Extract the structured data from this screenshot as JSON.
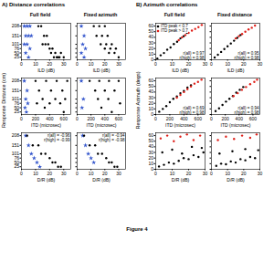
{
  "figure_title": "Figure 4",
  "sections": [
    {
      "title": "A) Distance correlations",
      "y_label": "Response Distance (cm)",
      "column_titles": [
        "Full field",
        "Fixed azimuth"
      ]
    },
    {
      "title": "B) Azimuth correlations",
      "y_label": "Response Azimuth (degs)",
      "column_titles": [
        "Full field",
        "Fixed distance"
      ]
    }
  ],
  "chart_data": [
    {
      "type": "scatter",
      "x_label": "ILD (dB)",
      "xlim": [
        0,
        35
      ],
      "xticks": [
        0,
        10,
        20,
        30
      ],
      "ylim": [
        10,
        225
      ],
      "yticks": [
        25,
        50,
        76,
        101,
        151,
        208
      ],
      "series": [
        {
          "color": "#3355cc",
          "marker": "star",
          "x": [
            2,
            4,
            6,
            3,
            5,
            7,
            2,
            4,
            6,
            3,
            5
          ],
          "values": [
            208,
            208,
            208,
            151,
            151,
            151,
            101,
            101,
            76,
            50,
            25
          ]
        },
        {
          "color": "#000000",
          "marker": "circle",
          "x": [
            12,
            14,
            16,
            18,
            15,
            17,
            19,
            20,
            22,
            21,
            24,
            23,
            26,
            25,
            28,
            27,
            30
          ],
          "values": [
            208,
            208,
            151,
            151,
            101,
            101,
            101,
            76,
            76,
            50,
            50,
            25,
            25,
            25,
            50,
            25,
            25
          ]
        }
      ]
    },
    {
      "type": "scatter",
      "x_label": "ILD (dB)",
      "xlim": [
        0,
        35
      ],
      "xticks": [
        0,
        10,
        20,
        30
      ],
      "ylim": [
        10,
        225
      ],
      "yticks": [
        25,
        50,
        76,
        101,
        151,
        208
      ],
      "tick_labels": "x",
      "series": [
        {
          "color": "#3355cc",
          "marker": "star",
          "x": [
            3,
            5,
            4,
            6,
            3,
            5
          ],
          "values": [
            208,
            151,
            101,
            76,
            50,
            25
          ]
        },
        {
          "color": "#000000",
          "marker": "circle",
          "x": [
            12,
            16,
            20,
            14,
            18,
            22,
            17,
            21,
            25,
            20,
            24,
            28,
            23,
            27,
            30
          ],
          "values": [
            208,
            208,
            208,
            151,
            151,
            151,
            101,
            101,
            101,
            76,
            76,
            76,
            50,
            50,
            25
          ]
        }
      ]
    },
    {
      "type": "scatter",
      "x_label": "ITD (microsec)",
      "xlim": [
        0,
        700
      ],
      "xticks": [
        0,
        200,
        400,
        600
      ],
      "ylim": [
        10,
        225
      ],
      "yticks": [
        25,
        50,
        76,
        101,
        151,
        208
      ],
      "series": [
        {
          "color": "#3355cc",
          "marker": "star",
          "x": [
            40,
            80,
            60,
            90,
            50,
            70
          ],
          "values": [
            208,
            151,
            101,
            76,
            50,
            25
          ]
        },
        {
          "color": "#000000",
          "marker": "circle",
          "x": [
            200,
            350,
            500,
            650,
            250,
            420,
            580,
            300,
            480,
            620,
            220,
            400,
            550,
            330,
            600
          ],
          "values": [
            208,
            208,
            208,
            208,
            151,
            151,
            151,
            101,
            101,
            101,
            76,
            76,
            76,
            50,
            25
          ]
        }
      ]
    },
    {
      "type": "scatter",
      "x_label": "ITD (microsec)",
      "xlim": [
        0,
        700
      ],
      "xticks": [
        0,
        200,
        400,
        600
      ],
      "ylim": [
        10,
        225
      ],
      "yticks": [
        25,
        50,
        76,
        101,
        151,
        208
      ],
      "tick_labels": "x",
      "series": [
        {
          "color": "#3355cc",
          "marker": "star",
          "x": [
            60,
            90,
            70
          ],
          "values": [
            208,
            101,
            50
          ]
        },
        {
          "color": "#000000",
          "marker": "circle",
          "x": [
            180,
            320,
            460,
            600,
            260,
            400,
            540,
            300,
            450,
            620,
            350,
            500
          ],
          "values": [
            208,
            208,
            208,
            208,
            151,
            151,
            151,
            101,
            101,
            76,
            50,
            25
          ]
        }
      ]
    },
    {
      "type": "scatter",
      "x_label": "D/R (dB)",
      "xlim": [
        0,
        35
      ],
      "xticks": [
        0,
        10,
        20,
        30
      ],
      "ylim": [
        10,
        225
      ],
      "yticks": [
        25,
        50,
        76,
        101,
        151,
        208
      ],
      "annotations": [
        "r(all) = -0.96",
        "r(high) = -0.99"
      ],
      "series": [
        {
          "color": "#3355cc",
          "marker": "star",
          "x": [
            3,
            5,
            7,
            9,
            11,
            13
          ],
          "values": [
            208,
            151,
            101,
            76,
            50,
            25
          ]
        },
        {
          "color": "#000000",
          "marker": "circle",
          "x": [
            4,
            8,
            12,
            14,
            17,
            20,
            22,
            24,
            26,
            28
          ],
          "values": [
            208,
            151,
            151,
            101,
            101,
            76,
            50,
            50,
            25,
            25
          ]
        }
      ]
    },
    {
      "type": "scatter",
      "x_label": "D/R (dB)",
      "xlim": [
        0,
        35
      ],
      "xticks": [
        0,
        10,
        20,
        30
      ],
      "ylim": [
        10,
        225
      ],
      "yticks": [
        25,
        50,
        76,
        101,
        151,
        208
      ],
      "tick_labels": "x",
      "annotations": [
        "r(all) = -0.94",
        "r(high) = -0.98"
      ],
      "series": [
        {
          "color": "#3355cc",
          "marker": "star",
          "x": [
            4,
            6,
            8,
            10,
            12
          ],
          "values": [
            208,
            151,
            101,
            76,
            50
          ]
        },
        {
          "color": "#000000",
          "marker": "circle",
          "x": [
            5,
            9,
            13,
            15,
            18,
            21,
            23,
            25,
            27,
            29
          ],
          "values": [
            208,
            151,
            151,
            101,
            101,
            76,
            50,
            50,
            25,
            25
          ]
        }
      ]
    },
    {
      "type": "scatter",
      "x_label": "ILD (dB)",
      "xlim": [
        0,
        30
      ],
      "xticks": [
        0,
        10,
        20,
        30
      ],
      "ylim": [
        0,
        65
      ],
      "yticks": [
        0,
        10,
        20,
        30,
        40,
        50,
        60
      ],
      "legend": "top-left",
      "annotations": [
        "r(all) = 0.97",
        "r(high) = 0.98"
      ],
      "series": [
        {
          "name": "ITD peak < 0.7",
          "color": "#000000",
          "marker": "circle",
          "x": [
            1,
            3,
            5,
            7,
            9,
            11,
            13,
            15,
            17,
            19
          ],
          "values": [
            2,
            8,
            12,
            18,
            22,
            28,
            32,
            38,
            42,
            48
          ]
        },
        {
          "name": "ITD peak > 0.7",
          "color": "#e0201a",
          "marker": "circle",
          "x": [
            14,
            16,
            18,
            20,
            22,
            24,
            26,
            28
          ],
          "values": [
            35,
            40,
            44,
            48,
            52,
            55,
            58,
            62
          ]
        }
      ]
    },
    {
      "type": "scatter",
      "x_label": "ILD (dB)",
      "xlim": [
        0,
        30
      ],
      "xticks": [
        0,
        10,
        20,
        30
      ],
      "ylim": [
        0,
        65
      ],
      "yticks": [
        0,
        10,
        20,
        30,
        40,
        50,
        60
      ],
      "tick_labels": "x",
      "annotations": [
        "r(all) = 0.95",
        "r(high) = 0.98"
      ],
      "series": [
        {
          "color": "#000000",
          "marker": "circle",
          "x": [
            2,
            4,
            6,
            8,
            10,
            12,
            14,
            16,
            18
          ],
          "values": [
            4,
            9,
            14,
            19,
            24,
            29,
            34,
            39,
            44
          ]
        },
        {
          "color": "#e0201a",
          "marker": "circle",
          "x": [
            15,
            17,
            19,
            21,
            23,
            25,
            27
          ],
          "values": [
            38,
            42,
            46,
            50,
            54,
            57,
            61
          ]
        }
      ]
    },
    {
      "type": "scatter",
      "x_label": "ITD (microsec)",
      "xlim": [
        0,
        700
      ],
      "xticks": [
        0,
        200,
        400,
        600
      ],
      "ylim": [
        0,
        65
      ],
      "yticks": [
        0,
        10,
        20,
        30,
        40,
        50,
        60
      ],
      "annotations": [
        "r(all) = 0.69",
        "r(high) = 0.98"
      ],
      "series": [
        {
          "color": "#000000",
          "marker": "circle",
          "x": [
            50,
            100,
            150,
            200,
            250,
            300,
            350,
            400,
            450,
            500
          ],
          "values": [
            5,
            10,
            15,
            22,
            28,
            32,
            38,
            42,
            48,
            52
          ]
        },
        {
          "color": "#e0201a",
          "marker": "circle",
          "x": [
            300,
            350,
            400,
            450,
            500,
            550,
            600,
            650
          ],
          "values": [
            30,
            35,
            40,
            45,
            50,
            55,
            58,
            62
          ]
        }
      ]
    },
    {
      "type": "scatter",
      "x_label": "ITD (microsec)",
      "xlim": [
        0,
        700
      ],
      "xticks": [
        0,
        200,
        400,
        600
      ],
      "ylim": [
        0,
        65
      ],
      "yticks": [
        0,
        10,
        20,
        30,
        40,
        50,
        60
      ],
      "tick_labels": "x",
      "annotations": [
        "r(all) = 0.94",
        "r(high) = 0.98"
      ],
      "series": [
        {
          "color": "#000000",
          "marker": "circle",
          "x": [
            60,
            110,
            160,
            210,
            260,
            310,
            360,
            410,
            460
          ],
          "values": [
            6,
            11,
            17,
            23,
            28,
            33,
            39,
            44,
            49
          ]
        },
        {
          "color": "#e0201a",
          "marker": "circle",
          "x": [
            320,
            380,
            440,
            500,
            560,
            620,
            660
          ],
          "values": [
            33,
            38,
            44,
            49,
            54,
            58,
            62
          ]
        }
      ]
    },
    {
      "type": "scatter",
      "x_label": "D/R (dB)",
      "xlim": [
        0,
        30
      ],
      "xticks": [
        0,
        10,
        20,
        30
      ],
      "ylim": [
        0,
        65
      ],
      "yticks": [
        0,
        10,
        20,
        30,
        40,
        50,
        60
      ],
      "series": [
        {
          "color": "#000000",
          "marker": "circle",
          "x": [
            2,
            5,
            8,
            11,
            14,
            17,
            20,
            23,
            26,
            29,
            4,
            10,
            16,
            22,
            28
          ],
          "values": [
            5,
            8,
            12,
            10,
            15,
            20,
            18,
            25,
            22,
            30,
            30,
            35,
            28,
            40,
            38
          ]
        },
        {
          "color": "#e0201a",
          "marker": "circle",
          "x": [
            3,
            7,
            11,
            15,
            19,
            23,
            27
          ],
          "values": [
            55,
            60,
            50,
            58,
            62,
            52,
            60
          ]
        }
      ]
    },
    {
      "type": "scatter",
      "x_label": "D/R (dB)",
      "xlim": [
        0,
        30
      ],
      "xticks": [
        0,
        10,
        20,
        30
      ],
      "ylim": [
        0,
        65
      ],
      "yticks": [
        0,
        10,
        20,
        30,
        40,
        50,
        60
      ],
      "tick_labels": "x",
      "series": [
        {
          "color": "#000000",
          "marker": "circle",
          "x": [
            3,
            6,
            9,
            12,
            15,
            18,
            21,
            24,
            27,
            5,
            13,
            21,
            29
          ],
          "values": [
            6,
            10,
            9,
            14,
            12,
            18,
            16,
            22,
            20,
            28,
            32,
            36,
            34
          ]
        },
        {
          "color": "#e0201a",
          "marker": "circle",
          "x": [
            4,
            9,
            14,
            19,
            24,
            28
          ],
          "values": [
            52,
            58,
            54,
            60,
            56,
            62
          ]
        }
      ]
    }
  ]
}
